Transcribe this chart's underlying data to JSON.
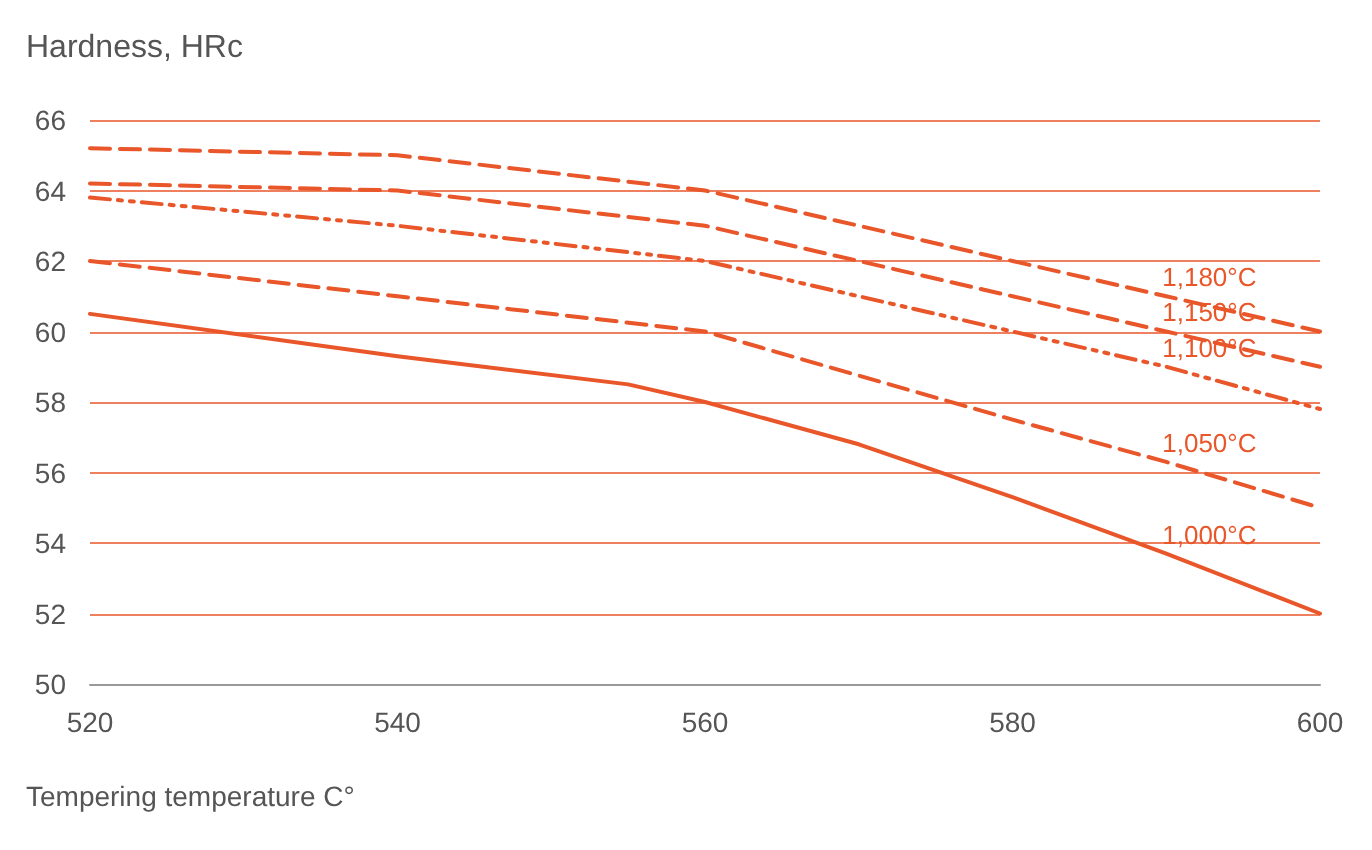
{
  "chart_data": {
    "type": "line",
    "ylabel": "Hardness, HRc",
    "xlabel": "Tempering temperature C°",
    "xlim": [
      520,
      600
    ],
    "xticks": [
      520,
      540,
      560,
      580,
      600
    ],
    "ylim": [
      50,
      66
    ],
    "yticks": [
      50,
      52,
      54,
      56,
      58,
      60,
      62,
      64,
      66
    ],
    "grid": "y",
    "legend": false,
    "marker": "none",
    "series": [
      {
        "name": "1,180°C",
        "color": "#e8562a",
        "line_style": "dashed",
        "x": [
          520,
          540,
          560,
          580,
          590,
          600
        ],
        "values": [
          65.2,
          65.0,
          64.0,
          62.0,
          61.0,
          60.0
        ]
      },
      {
        "name": "1,150°C",
        "color": "#e8562a",
        "line_style": "dashed",
        "x": [
          520,
          540,
          560,
          580,
          590,
          600
        ],
        "values": [
          64.2,
          64.0,
          63.0,
          61.0,
          60.0,
          59.0
        ]
      },
      {
        "name": "1,100°C",
        "color": "#e8562a",
        "line_style": "dotted",
        "x": [
          520,
          540,
          560,
          580,
          590,
          600
        ],
        "values": [
          63.8,
          63.0,
          62.0,
          60.0,
          59.0,
          57.8
        ]
      },
      {
        "name": "1,050°C",
        "color": "#e8562a",
        "line_style": "dashed",
        "x": [
          520,
          540,
          560,
          580,
          590,
          600
        ],
        "values": [
          62.0,
          61.0,
          60.0,
          57.5,
          56.3,
          55.0
        ]
      },
      {
        "name": "1,000°C",
        "color": "#e8562a",
        "line_style": "solid",
        "x": [
          520,
          540,
          555,
          560,
          570,
          580,
          590,
          600
        ],
        "values": [
          60.5,
          59.3,
          58.5,
          58.0,
          56.8,
          55.3,
          53.7,
          52.0
        ]
      }
    ]
  }
}
